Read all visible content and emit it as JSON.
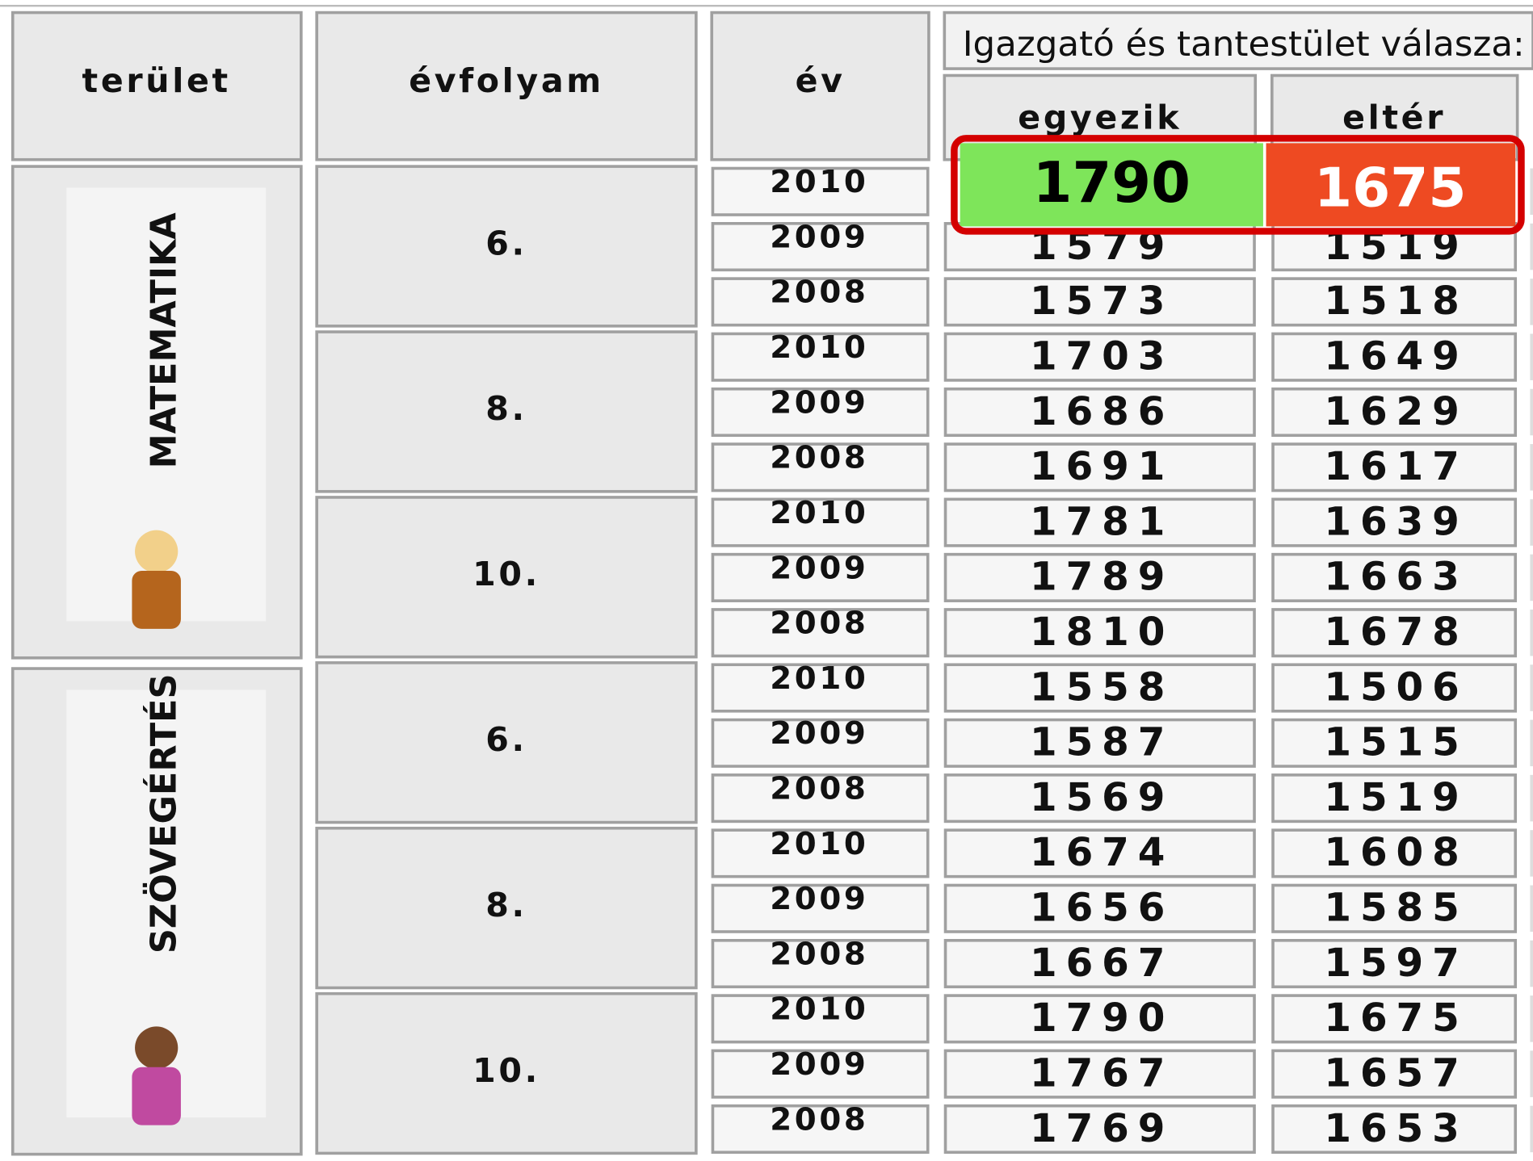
{
  "header": {
    "area": "terület",
    "grade": "évfolyam",
    "year": "év",
    "response": "Igazgató és tantestület válasza:",
    "agree": "egyezik",
    "differ": "eltér"
  },
  "highlight": {
    "agree": 1790,
    "differ": 1675
  },
  "subjects": [
    {
      "name": "MATEMATIKA",
      "grades": [
        {
          "grade": "6.",
          "rows": [
            {
              "year": 2010
            },
            {
              "year": 2009,
              "agree": 1579,
              "differ": 1519
            },
            {
              "year": 2008,
              "agree": 1573,
              "differ": 1518
            }
          ]
        },
        {
          "grade": "8.",
          "rows": [
            {
              "year": 2010,
              "agree": 1703,
              "differ": 1649
            },
            {
              "year": 2009,
              "agree": 1686,
              "differ": 1629
            },
            {
              "year": 2008,
              "agree": 1691,
              "differ": 1617
            }
          ]
        },
        {
          "grade": "10.",
          "rows": [
            {
              "year": 2010,
              "agree": 1781,
              "differ": 1639
            },
            {
              "year": 2009,
              "agree": 1789,
              "differ": 1663
            },
            {
              "year": 2008,
              "agree": 1810,
              "differ": 1678
            }
          ]
        }
      ]
    },
    {
      "name": "SZÖVEGÉRTÉS",
      "grades": [
        {
          "grade": "6.",
          "rows": [
            {
              "year": 2010,
              "agree": 1558,
              "differ": 1506
            },
            {
              "year": 2009,
              "agree": 1587,
              "differ": 1515
            },
            {
              "year": 2008,
              "agree": 1569,
              "differ": 1519
            }
          ]
        },
        {
          "grade": "8.",
          "rows": [
            {
              "year": 2010,
              "agree": 1674,
              "differ": 1608
            },
            {
              "year": 2009,
              "agree": 1656,
              "differ": 1585
            },
            {
              "year": 2008,
              "agree": 1667,
              "differ": 1597
            }
          ]
        },
        {
          "grade": "10.",
          "rows": [
            {
              "year": 2010,
              "agree": 1790,
              "differ": 1675
            },
            {
              "year": 2009,
              "agree": 1767,
              "differ": 1657
            },
            {
              "year": 2008,
              "agree": 1769,
              "differ": 1653
            }
          ]
        }
      ]
    }
  ]
}
